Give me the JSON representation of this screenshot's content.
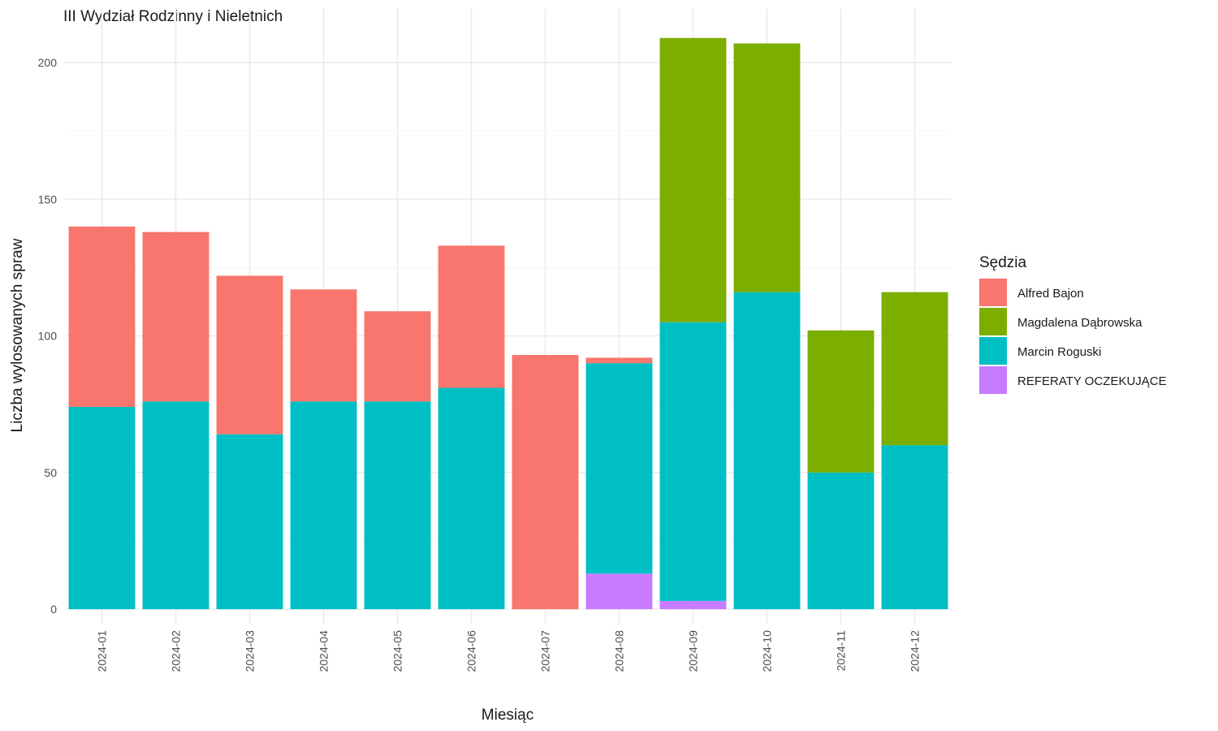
{
  "chart_data": {
    "type": "bar",
    "stacked": true,
    "title": "III Wydział Rodzinny i Nieletnich",
    "xlabel": "Miesiąc",
    "ylabel": "Liczba wylosowanych spraw",
    "ylim": [
      0,
      215
    ],
    "yticks": [
      0,
      50,
      100,
      150,
      200
    ],
    "grid": true,
    "legend": {
      "title": "Sędzia",
      "position": "right"
    },
    "categories": [
      "2024-01",
      "2024-02",
      "2024-03",
      "2024-04",
      "2024-05",
      "2024-06",
      "2024-07",
      "2024-08",
      "2024-09",
      "2024-10",
      "2024-11",
      "2024-12"
    ],
    "series": [
      {
        "name": "Alfred Bajon",
        "color": "#F8766D",
        "values": [
          66,
          62,
          58,
          41,
          33,
          52,
          93,
          2,
          0,
          0,
          0,
          0
        ]
      },
      {
        "name": "Magdalena Dąbrowska",
        "color": "#7CAE00",
        "values": [
          0,
          0,
          0,
          0,
          0,
          0,
          0,
          0,
          104,
          91,
          52,
          56
        ]
      },
      {
        "name": "Marcin Roguski",
        "color": "#00BFC4",
        "values": [
          74,
          76,
          64,
          76,
          76,
          81,
          0,
          77,
          102,
          116,
          50,
          60
        ]
      },
      {
        "name": "REFERATY OCZEKUJĄCE",
        "color": "#C77CFF",
        "values": [
          0,
          0,
          0,
          0,
          0,
          0,
          0,
          13,
          3,
          0,
          0,
          0
        ]
      }
    ]
  }
}
